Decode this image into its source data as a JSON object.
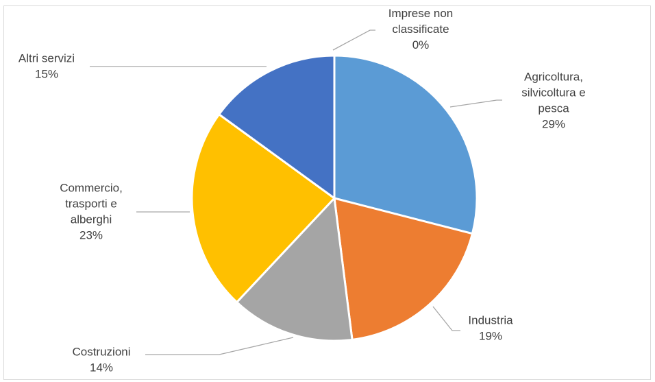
{
  "chart_data": {
    "type": "pie",
    "title": "",
    "slices": [
      {
        "name": "Agricoltura, silvicoltura e pesca",
        "label_lines": [
          "Agricoltura,",
          "silvicoltura e",
          "pesca"
        ],
        "value": 29,
        "pct_label": "29%",
        "color": "#5b9bd5"
      },
      {
        "name": "Industria",
        "label_lines": [
          "Industria"
        ],
        "value": 19,
        "pct_label": "19%",
        "color": "#ed7d31"
      },
      {
        "name": "Costruzioni",
        "label_lines": [
          "Costruzioni"
        ],
        "value": 14,
        "pct_label": "14%",
        "color": "#a5a5a5"
      },
      {
        "name": "Commercio, trasporti e alberghi",
        "label_lines": [
          "Commercio,",
          "trasporti e",
          "alberghi"
        ],
        "value": 23,
        "pct_label": "23%",
        "color": "#ffc000"
      },
      {
        "name": "Altri servizi",
        "label_lines": [
          "Altri servizi"
        ],
        "value": 15,
        "pct_label": "15%",
        "color": "#4472c4"
      },
      {
        "name": "Imprese non classificate",
        "label_lines": [
          "Imprese non",
          "classificate"
        ],
        "value": 0,
        "pct_label": "0%",
        "color": "#70ad47"
      }
    ],
    "legend": "none",
    "data_labels": "outside with leader lines"
  }
}
